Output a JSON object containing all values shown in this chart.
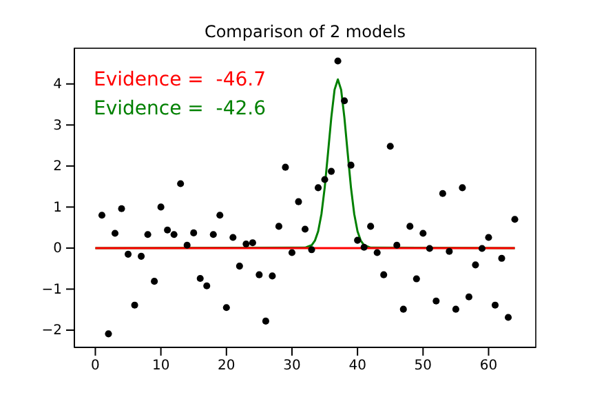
{
  "chart_data": {
    "type": "scatter",
    "title": "Comparison of 2 models",
    "annotations": [
      "Evidence =  -46.7",
      "Evidence =  -42.6"
    ],
    "xlim": [
      -3.2,
      67.2
    ],
    "xticks": [
      0,
      10,
      20,
      30,
      40,
      50,
      60
    ],
    "ylim": [
      -2.42,
      4.87
    ],
    "yticks": [
      -2,
      -1,
      0,
      1,
      2,
      3,
      4
    ],
    "grid": false,
    "series": [
      {
        "marker": "circle",
        "color": "#000000",
        "x": [
          1,
          2,
          3,
          4,
          5,
          6,
          7,
          8,
          9,
          10,
          11,
          12,
          13,
          14,
          15,
          16,
          17,
          18,
          19,
          20,
          21,
          22,
          23,
          24,
          25,
          26,
          27,
          28,
          29,
          30,
          31,
          32,
          33,
          34,
          35,
          36,
          37,
          38,
          39,
          40,
          41,
          42,
          43,
          44,
          45,
          46,
          47,
          48,
          49,
          50,
          51,
          52,
          53,
          54,
          55,
          56,
          57,
          58,
          59,
          60,
          61,
          62,
          63,
          64
        ],
        "values": [
          0.8,
          -2.09,
          0.36,
          0.96,
          -0.15,
          -1.39,
          -0.2,
          0.33,
          -0.81,
          1.0,
          0.44,
          0.33,
          1.57,
          0.07,
          0.37,
          -0.74,
          -0.92,
          0.33,
          0.8,
          -1.45,
          0.26,
          -0.44,
          0.1,
          0.13,
          -0.65,
          -1.78,
          -0.68,
          0.53,
          1.97,
          -0.11,
          1.13,
          0.46,
          -0.04,
          1.47,
          1.67,
          1.87,
          4.56,
          3.59,
          2.02,
          0.19,
          0.02,
          0.53,
          -0.11,
          -0.65,
          2.48,
          0.07,
          -1.49,
          0.53,
          -0.75,
          0.36,
          -0.01,
          -1.29,
          1.33,
          -0.08,
          -1.49,
          1.47,
          -1.19,
          -0.41,
          -0.01,
          0.26,
          -1.39,
          -0.25,
          -1.69,
          0.7
        ]
      },
      {
        "type": "line",
        "color": "#ff0000",
        "x": [
          0,
          64
        ],
        "values": [
          0,
          0
        ]
      },
      {
        "type": "line",
        "color": "#008000",
        "x": [
          0,
          32,
          33,
          33.5,
          34,
          34.5,
          35,
          35.5,
          36,
          36.5,
          37,
          37.5,
          38,
          38.5,
          39,
          39.5,
          40,
          40.5,
          41,
          42,
          64
        ],
        "values": [
          0,
          0.01,
          0.07,
          0.18,
          0.41,
          0.83,
          1.48,
          2.32,
          3.18,
          3.86,
          4.11,
          3.86,
          3.18,
          2.32,
          1.48,
          0.83,
          0.41,
          0.18,
          0.07,
          0.01,
          0
        ]
      }
    ]
  }
}
